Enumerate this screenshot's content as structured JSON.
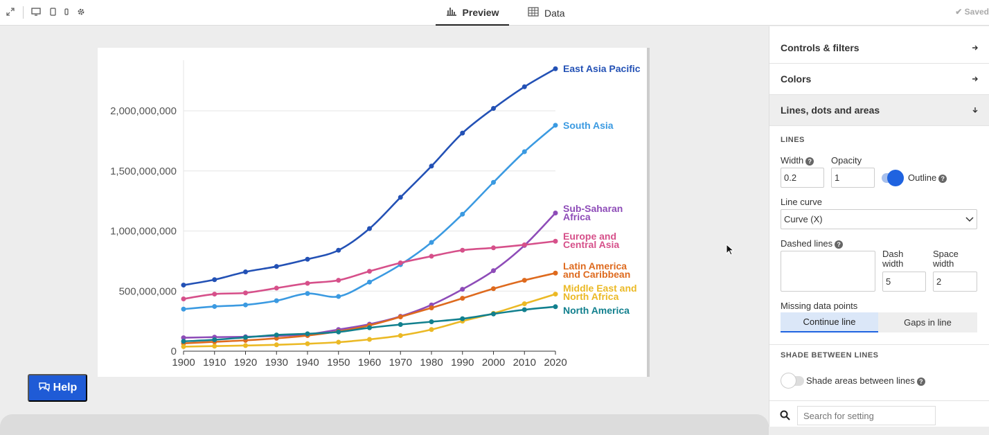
{
  "topbar": {
    "tabs": [
      {
        "label": "Preview",
        "icon": "bar-chart-icon"
      },
      {
        "label": "Data",
        "icon": "table-icon"
      }
    ],
    "saved_label": "Saved",
    "saved_icon": "✔"
  },
  "help_button": {
    "label": "Help"
  },
  "panel": {
    "sections": {
      "controls": "Controls & filters",
      "colors": "Colors",
      "lines": "Lines, dots and areas"
    },
    "lines_heading": "LINES",
    "width_label": "Width",
    "width_value": "0.2",
    "opacity_label": "Opacity",
    "opacity_value": "1",
    "outline_label": "Outline",
    "line_curve_label": "Line curve",
    "line_curve_value": "Curve (X)",
    "dashed_label": "Dashed lines",
    "dash_width_label_1": "Dash",
    "dash_width_label_2": "width",
    "dash_width_value": "5",
    "space_width_label_1": "Space",
    "space_width_label_2": "width",
    "space_width_value": "2",
    "missing_label": "Missing data points",
    "missing_options": [
      "Continue line",
      "Gaps in line"
    ],
    "shade_heading": "SHADE BETWEEN LINES",
    "shade_label": "Shade areas between lines",
    "search_placeholder": "Search for setting"
  },
  "chart_data": {
    "type": "line",
    "title": "",
    "xlabel": "",
    "ylabel": "",
    "x": [
      1900,
      1910,
      1920,
      1930,
      1940,
      1950,
      1960,
      1970,
      1980,
      1990,
      2000,
      2010,
      2020
    ],
    "ylim": [
      0,
      2400000000
    ],
    "y_ticks": [
      "0",
      "500,000,000",
      "1,000,000,000",
      "1,500,000,000",
      "2,000,000,000"
    ],
    "y_tick_values": [
      0,
      500000000,
      1000000000,
      1500000000,
      2000000000
    ],
    "x_ticks": [
      "1900",
      "1910",
      "1920",
      "1930",
      "1940",
      "1950",
      "1960",
      "1970",
      "1980",
      "1990",
      "2000",
      "2010",
      "2020"
    ],
    "series": [
      {
        "name": "East Asia Pacific",
        "label_lines": [
          "East Asia Pacific"
        ],
        "color": "#2351b5",
        "values": [
          550000000,
          595000000,
          660000000,
          705000000,
          765000000,
          840000000,
          1020000000,
          1280000000,
          1540000000,
          1815000000,
          2020000000,
          2200000000,
          2350000000
        ]
      },
      {
        "name": "South Asia",
        "label_lines": [
          "South Asia"
        ],
        "color": "#3b9ae1",
        "values": [
          350000000,
          372000000,
          385000000,
          420000000,
          480000000,
          455000000,
          575000000,
          720000000,
          905000000,
          1140000000,
          1405000000,
          1660000000,
          1880000000
        ]
      },
      {
        "name": "Sub-Saharan Africa",
        "label_lines": [
          "Sub-Saharan",
          "Africa"
        ],
        "color": "#8e4cb8",
        "values": [
          112000000,
          117000000,
          120000000,
          128000000,
          140000000,
          180000000,
          225000000,
          290000000,
          385000000,
          515000000,
          670000000,
          880000000,
          1150000000
        ]
      },
      {
        "name": "Europe and Central Asia",
        "label_lines": [
          "Europe and",
          "Central Asia"
        ],
        "color": "#d6508a",
        "values": [
          435000000,
          475000000,
          485000000,
          525000000,
          565000000,
          590000000,
          665000000,
          735000000,
          790000000,
          840000000,
          860000000,
          885000000,
          915000000
        ]
      },
      {
        "name": "Latin America and Caribbean",
        "label_lines": [
          "Latin America",
          "and Caribbean"
        ],
        "color": "#de6a1e",
        "values": [
          65000000,
          78000000,
          90000000,
          107000000,
          130000000,
          165000000,
          215000000,
          285000000,
          360000000,
          440000000,
          520000000,
          590000000,
          650000000
        ]
      },
      {
        "name": "Middle East and North Africa",
        "label_lines": [
          "Middle East and",
          "North Africa"
        ],
        "color": "#ebb925",
        "values": [
          38000000,
          42000000,
          47000000,
          53000000,
          62000000,
          75000000,
          98000000,
          130000000,
          180000000,
          250000000,
          315000000,
          395000000,
          475000000
        ]
      },
      {
        "name": "North America",
        "label_lines": [
          "North America"
        ],
        "color": "#12808e",
        "values": [
          82000000,
          95000000,
          115000000,
          135000000,
          145000000,
          160000000,
          195000000,
          222000000,
          245000000,
          270000000,
          310000000,
          345000000,
          370000000
        ]
      }
    ]
  }
}
